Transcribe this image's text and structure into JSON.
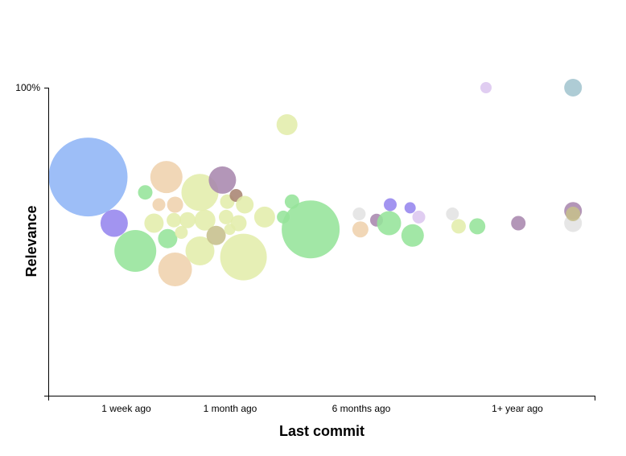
{
  "chart_data": {
    "type": "scatter",
    "variant": "bubble",
    "xlabel": "Last commit",
    "ylabel": "Relevance",
    "x_categories": [
      "1 week ago",
      "1 month ago",
      "6 months ago",
      "1+ year ago"
    ],
    "y_ticks": [
      {
        "value": 100,
        "label": "100%"
      }
    ],
    "xlim": [
      0,
      4.4
    ],
    "ylim": [
      0,
      100
    ],
    "grid": false,
    "legend": "none",
    "points": [
      {
        "x": 0.32,
        "y": 71,
        "r": 49,
        "color": "#8fb5f6"
      },
      {
        "x": 0.53,
        "y": 56,
        "r": 17,
        "color": "#9585ee"
      },
      {
        "x": 0.7,
        "y": 47,
        "r": 26,
        "color": "#95e49a"
      },
      {
        "x": 0.78,
        "y": 66,
        "r": 9,
        "color": "#95e49a"
      },
      {
        "x": 0.85,
        "y": 56,
        "r": 12,
        "color": "#e2edab"
      },
      {
        "x": 0.89,
        "y": 62,
        "r": 8,
        "color": "#efd2ad"
      },
      {
        "x": 0.95,
        "y": 71,
        "r": 20,
        "color": "#efd2ad"
      },
      {
        "x": 0.96,
        "y": 51,
        "r": 12,
        "color": "#95e49a"
      },
      {
        "x": 1.01,
        "y": 57,
        "r": 9,
        "color": "#e2edab"
      },
      {
        "x": 1.02,
        "y": 41,
        "r": 21,
        "color": "#efd2ad"
      },
      {
        "x": 1.02,
        "y": 62,
        "r": 10,
        "color": "#efd2ad"
      },
      {
        "x": 1.07,
        "y": 53,
        "r": 8,
        "color": "#e2edab"
      },
      {
        "x": 1.12,
        "y": 57,
        "r": 10,
        "color": "#e2edab"
      },
      {
        "x": 1.22,
        "y": 66,
        "r": 23,
        "color": "#e2edab"
      },
      {
        "x": 1.22,
        "y": 47,
        "r": 18,
        "color": "#e2edab"
      },
      {
        "x": 1.26,
        "y": 57,
        "r": 13,
        "color": "#e2edab"
      },
      {
        "x": 1.35,
        "y": 52,
        "r": 12,
        "color": "#c6bf8c"
      },
      {
        "x": 1.4,
        "y": 70,
        "r": 17,
        "color": "#a987ae"
      },
      {
        "x": 1.43,
        "y": 58,
        "r": 9,
        "color": "#e2edab"
      },
      {
        "x": 1.44,
        "y": 63,
        "r": 9,
        "color": "#e2edab"
      },
      {
        "x": 1.46,
        "y": 54,
        "r": 7,
        "color": "#e2edab"
      },
      {
        "x": 1.51,
        "y": 65,
        "r": 8,
        "color": "#a98472"
      },
      {
        "x": 1.53,
        "y": 56,
        "r": 10,
        "color": "#e2edab"
      },
      {
        "x": 1.57,
        "y": 45,
        "r": 29,
        "color": "#e2edab"
      },
      {
        "x": 1.58,
        "y": 62,
        "r": 11,
        "color": "#e2edab"
      },
      {
        "x": 1.74,
        "y": 58,
        "r": 13,
        "color": "#e2edab"
      },
      {
        "x": 1.89,
        "y": 58,
        "r": 8,
        "color": "#95e49a"
      },
      {
        "x": 1.92,
        "y": 88,
        "r": 13,
        "color": "#e2edab"
      },
      {
        "x": 1.96,
        "y": 63,
        "r": 9,
        "color": "#95e49a"
      },
      {
        "x": 2.11,
        "y": 54,
        "r": 36,
        "color": "#95e49a"
      },
      {
        "x": 2.5,
        "y": 59,
        "r": 8,
        "color": "#e2e2e2"
      },
      {
        "x": 2.51,
        "y": 54,
        "r": 10,
        "color": "#efd2ad"
      },
      {
        "x": 2.64,
        "y": 57,
        "r": 8,
        "color": "#a987ae"
      },
      {
        "x": 2.74,
        "y": 56,
        "r": 15,
        "color": "#95e49a"
      },
      {
        "x": 2.75,
        "y": 62,
        "r": 8,
        "color": "#9585ee"
      },
      {
        "x": 2.91,
        "y": 61,
        "r": 7,
        "color": "#9585ee"
      },
      {
        "x": 2.93,
        "y": 52,
        "r": 14,
        "color": "#95e49a"
      },
      {
        "x": 2.98,
        "y": 58,
        "r": 8,
        "color": "#dcc6ef"
      },
      {
        "x": 3.25,
        "y": 59,
        "r": 8,
        "color": "#e2e2e2"
      },
      {
        "x": 3.3,
        "y": 55,
        "r": 9,
        "color": "#e2edab"
      },
      {
        "x": 3.45,
        "y": 55,
        "r": 10,
        "color": "#95e49a"
      },
      {
        "x": 3.52,
        "y": 100,
        "r": 7,
        "color": "#dcc6ef"
      },
      {
        "x": 3.78,
        "y": 56,
        "r": 9,
        "color": "#a987ae"
      },
      {
        "x": 4.22,
        "y": 56,
        "r": 11,
        "color": "#e2e2e2"
      },
      {
        "x": 4.22,
        "y": 60,
        "r": 11,
        "color": "#a987ae"
      },
      {
        "x": 4.22,
        "y": 59,
        "r": 9,
        "color": "#c6bf8c"
      },
      {
        "x": 4.22,
        "y": 100,
        "r": 11,
        "color": "#a3c5cf"
      }
    ]
  }
}
